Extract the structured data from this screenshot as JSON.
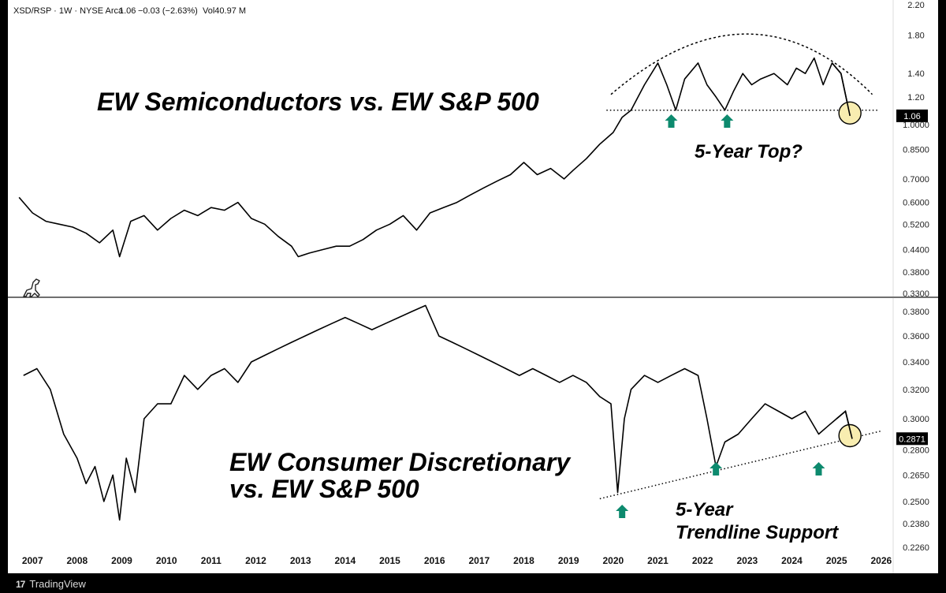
{
  "header": {
    "symbol": "XSD/RSP · 1W · NYSE Arca",
    "last": "1.06",
    "change": "−0.03 (−2.63%)",
    "volume": "Vol40.97 M"
  },
  "footer": {
    "brand": "TradingView"
  },
  "icons": {
    "watermark": "dinosaur-icon",
    "tradingview": "tradingview-logo-icon",
    "arrow": "up-arrow-icon"
  },
  "colors": {
    "line": "#000000",
    "arrow": "#0d8a6e",
    "highlight": "#f8edb0",
    "price_badge": "#000000"
  },
  "chart_data": [
    {
      "type": "line",
      "title": "EW Semiconductors vs. EW S&P 500",
      "annotation": "5-Year Top?",
      "y_scale": "log",
      "ylim": [
        0.33,
        2.2
      ],
      "y_ticks": [
        "2.20",
        "1.80",
        "1.40",
        "1.20",
        "1.0000",
        "0.8500",
        "0.7000",
        "0.6000",
        "0.5200",
        "0.4400",
        "0.3800",
        "0.3300"
      ],
      "last_value_label": "1.06",
      "x": [
        2006.7,
        2007.0,
        2007.3,
        2007.6,
        2007.9,
        2008.2,
        2008.5,
        2008.8,
        2008.95,
        2009.2,
        2009.5,
        2009.8,
        2010.1,
        2010.4,
        2010.7,
        2011.0,
        2011.3,
        2011.6,
        2011.9,
        2012.2,
        2012.5,
        2012.8,
        2012.95,
        2013.2,
        2013.5,
        2013.8,
        2014.1,
        2014.4,
        2014.7,
        2015.0,
        2015.3,
        2015.6,
        2015.9,
        2016.2,
        2016.5,
        2016.8,
        2017.1,
        2017.4,
        2017.7,
        2018.0,
        2018.3,
        2018.6,
        2018.9,
        2019.1,
        2019.4,
        2019.7,
        2020.0,
        2020.2,
        2020.4,
        2020.7,
        2021.0,
        2021.2,
        2021.4,
        2021.6,
        2021.9,
        2022.1,
        2022.3,
        2022.5,
        2022.7,
        2022.9,
        2023.1,
        2023.3,
        2023.6,
        2023.9,
        2024.1,
        2024.3,
        2024.5,
        2024.7,
        2024.9,
        2025.1,
        2025.3
      ],
      "values": [
        0.62,
        0.56,
        0.53,
        0.52,
        0.51,
        0.49,
        0.46,
        0.5,
        0.42,
        0.53,
        0.55,
        0.5,
        0.54,
        0.57,
        0.55,
        0.58,
        0.57,
        0.6,
        0.54,
        0.52,
        0.48,
        0.45,
        0.42,
        0.43,
        0.44,
        0.45,
        0.45,
        0.47,
        0.5,
        0.52,
        0.55,
        0.5,
        0.56,
        0.58,
        0.6,
        0.63,
        0.66,
        0.69,
        0.72,
        0.78,
        0.72,
        0.75,
        0.7,
        0.74,
        0.8,
        0.88,
        0.95,
        1.05,
        1.1,
        1.3,
        1.5,
        1.3,
        1.1,
        1.35,
        1.5,
        1.3,
        1.2,
        1.1,
        1.25,
        1.4,
        1.3,
        1.35,
        1.4,
        1.3,
        1.45,
        1.4,
        1.55,
        1.3,
        1.5,
        1.4,
        1.06
      ],
      "overlays": {
        "arc": "dotted",
        "horizontal_support": 1.1,
        "arrows_at": [
          2021.3,
          2022.55
        ],
        "highlight_at": 2025.3
      }
    },
    {
      "type": "line",
      "title": "EW Consumer Discretionary vs. EW S&P 500",
      "title_lines": [
        "EW Consumer Discretionary",
        "vs. EW S&P 500"
      ],
      "annotation_lines": [
        "5-Year",
        "Trendline Support"
      ],
      "y_scale": "log",
      "ylim": [
        0.226,
        0.39
      ],
      "y_ticks": [
        "0.3800",
        "0.3600",
        "0.3400",
        "0.3200",
        "0.3000",
        "0.2800",
        "0.2650",
        "0.2500",
        "0.2380",
        "0.2260"
      ],
      "last_value_label": "0.2871",
      "x": [
        2006.8,
        2007.1,
        2007.4,
        2007.7,
        2008.0,
        2008.2,
        2008.4,
        2008.6,
        2008.8,
        2008.95,
        2009.1,
        2009.3,
        2009.5,
        2009.8,
        2010.1,
        2010.4,
        2010.7,
        2011.0,
        2011.3,
        2011.6,
        2011.9,
        2012.2,
        2012.5,
        2012.8,
        2013.1,
        2013.4,
        2013.7,
        2014.0,
        2014.3,
        2014.6,
        2014.9,
        2015.2,
        2015.5,
        2015.8,
        2016.1,
        2016.4,
        2016.7,
        2017.0,
        2017.3,
        2017.6,
        2017.9,
        2018.2,
        2018.5,
        2018.8,
        2019.1,
        2019.4,
        2019.7,
        2019.95,
        2020.1,
        2020.25,
        2020.4,
        2020.7,
        2021.0,
        2021.3,
        2021.6,
        2021.9,
        2022.1,
        2022.3,
        2022.5,
        2022.8,
        2023.1,
        2023.4,
        2023.7,
        2024.0,
        2024.3,
        2024.6,
        2024.8,
        2025.0,
        2025.2,
        2025.35
      ],
      "values": [
        0.33,
        0.335,
        0.32,
        0.29,
        0.275,
        0.26,
        0.27,
        0.25,
        0.265,
        0.24,
        0.275,
        0.255,
        0.3,
        0.31,
        0.31,
        0.33,
        0.32,
        0.33,
        0.335,
        0.325,
        0.34,
        0.345,
        0.35,
        0.355,
        0.36,
        0.365,
        0.37,
        0.375,
        0.37,
        0.365,
        0.37,
        0.375,
        0.38,
        0.385,
        0.36,
        0.355,
        0.35,
        0.345,
        0.34,
        0.335,
        0.33,
        0.335,
        0.33,
        0.325,
        0.33,
        0.325,
        0.315,
        0.31,
        0.255,
        0.3,
        0.32,
        0.33,
        0.325,
        0.33,
        0.335,
        0.33,
        0.3,
        0.27,
        0.285,
        0.29,
        0.3,
        0.31,
        0.305,
        0.3,
        0.305,
        0.29,
        0.295,
        0.3,
        0.305,
        0.287
      ],
      "overlays": {
        "trendline": "dotted",
        "arrows_at": [
          2020.2,
          2022.3,
          2024.6
        ],
        "highlight_at": 2025.3
      }
    }
  ],
  "x_axis": {
    "ticks": [
      "2007",
      "2008",
      "2009",
      "2010",
      "2011",
      "2012",
      "2013",
      "2014",
      "2015",
      "2016",
      "2017",
      "2018",
      "2019",
      "2020",
      "2021",
      "2022",
      "2023",
      "2024",
      "2025",
      "2026"
    ]
  }
}
